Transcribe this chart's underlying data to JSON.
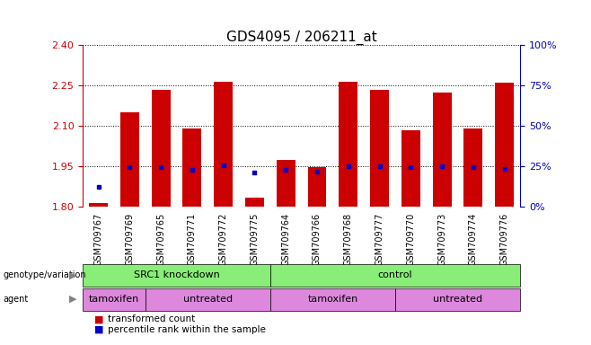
{
  "title": "GDS4095 / 206211_at",
  "samples": [
    "GSM709767",
    "GSM709769",
    "GSM709765",
    "GSM709771",
    "GSM709772",
    "GSM709775",
    "GSM709764",
    "GSM709766",
    "GSM709768",
    "GSM709777",
    "GSM709770",
    "GSM709773",
    "GSM709774",
    "GSM709776"
  ],
  "bar_bottoms": [
    1.8,
    1.8,
    1.8,
    1.8,
    1.8,
    1.8,
    1.8,
    1.8,
    1.8,
    1.8,
    1.8,
    1.8,
    1.8,
    1.8
  ],
  "bar_tops": [
    1.815,
    2.15,
    2.235,
    2.09,
    2.265,
    1.835,
    1.975,
    1.948,
    2.262,
    2.235,
    2.085,
    2.225,
    2.09,
    2.26
  ],
  "blue_markers": [
    1.875,
    1.947,
    1.948,
    1.937,
    1.955,
    1.928,
    1.938,
    1.932,
    1.951,
    1.95,
    1.947,
    1.95,
    1.947,
    1.94
  ],
  "ylim_left": [
    1.8,
    2.4
  ],
  "yleft_ticks": [
    1.8,
    1.95,
    2.1,
    2.25,
    2.4
  ],
  "yright_ticks": [
    0,
    25,
    50,
    75,
    100
  ],
  "yright_labels": [
    "0%",
    "25%",
    "50%",
    "75%",
    "100%"
  ],
  "bar_color": "#cc0000",
  "blue_color": "#0000cc",
  "bar_width": 0.6,
  "genotype_groups": [
    {
      "label": "SRC1 knockdown",
      "start": 0,
      "end": 6,
      "color": "#88ee77"
    },
    {
      "label": "control",
      "start": 6,
      "end": 14,
      "color": "#88ee77"
    }
  ],
  "agent_groups": [
    {
      "label": "tamoxifen",
      "start": 0,
      "end": 2,
      "color": "#dd88dd"
    },
    {
      "label": "untreated",
      "start": 2,
      "end": 6,
      "color": "#dd88dd"
    },
    {
      "label": "tamoxifen",
      "start": 6,
      "end": 10,
      "color": "#dd88dd"
    },
    {
      "label": "untreated",
      "start": 10,
      "end": 14,
      "color": "#dd88dd"
    }
  ],
  "legend_items": [
    {
      "label": "transformed count",
      "color": "#cc0000"
    },
    {
      "label": "percentile rank within the sample",
      "color": "#0000cc"
    }
  ],
  "left_axis_color": "#cc0000",
  "right_axis_color": "#0000bb",
  "title_fontsize": 11,
  "tick_fontsize": 8,
  "label_fontsize": 8,
  "bg_color": "#ffffff",
  "plot_bg": "#ffffff",
  "grid_color": "#000000",
  "grid_linestyle": ":"
}
